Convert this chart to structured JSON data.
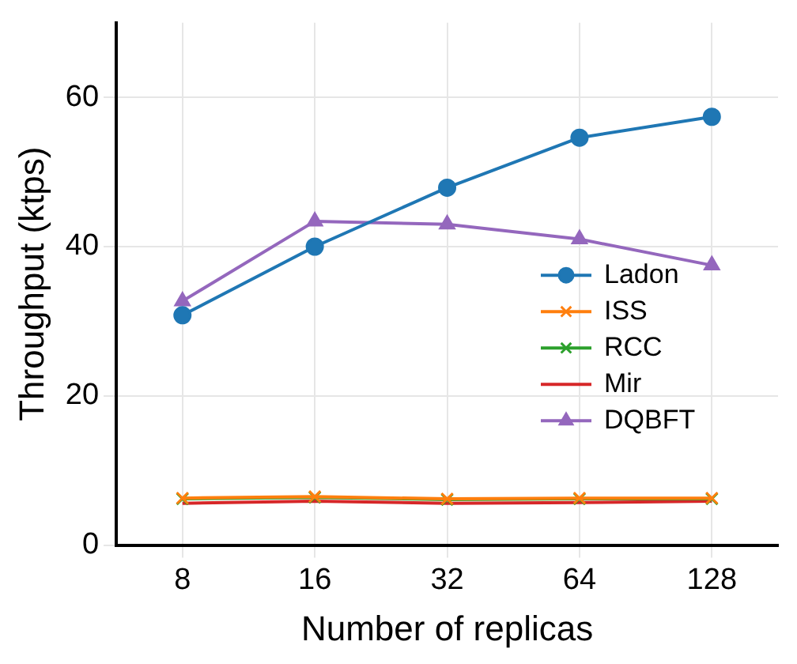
{
  "chart_data": {
    "type": "line",
    "xlabel": "Number of replicas",
    "ylabel": "Throughput (ktps)",
    "categories": [
      "8",
      "16",
      "32",
      "64",
      "128"
    ],
    "series": [
      {
        "name": "Ladon",
        "color": "#1f77b4",
        "marker": "circle",
        "values": [
          30.8,
          40,
          47.9,
          54.6,
          57.4
        ]
      },
      {
        "name": "ISS",
        "color": "#ff7f0e",
        "marker": "cross",
        "values": [
          6.3,
          6.5,
          6.2,
          6.3,
          6.3
        ]
      },
      {
        "name": "RCC",
        "color": "#2ca02c",
        "marker": "cross",
        "values": [
          6.2,
          6.4,
          6.1,
          6.2,
          6.2
        ]
      },
      {
        "name": "Mir",
        "color": "#d62728",
        "marker": "none",
        "values": [
          5.6,
          5.9,
          5.6,
          5.7,
          5.9
        ]
      },
      {
        "name": "DQBFT",
        "color": "#9467bd",
        "marker": "triangle",
        "values": [
          32.7,
          43.4,
          43,
          41,
          37.5
        ]
      }
    ],
    "ylim": [
      0,
      70
    ],
    "yticks": [
      0,
      20,
      40,
      60
    ],
    "grid": true,
    "legend": "right",
    "line_style": "solid"
  }
}
